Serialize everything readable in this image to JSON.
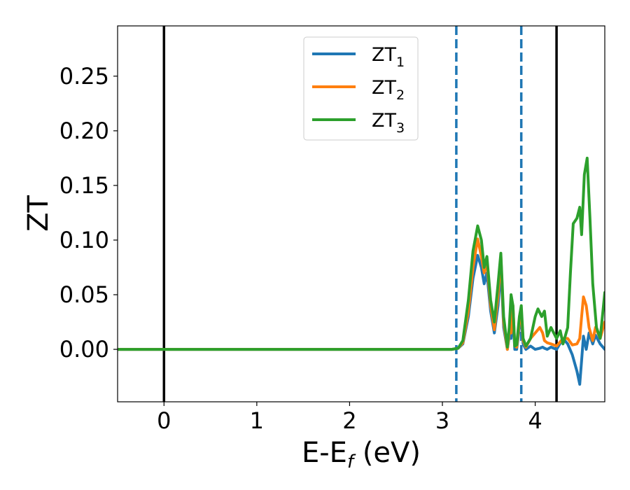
{
  "chart_data": {
    "type": "line",
    "xlabel": "E-E",
    "xlabel_sub": "f",
    "xlabel_unit": " (eV)",
    "ylabel": "ZT",
    "xlim": [
      -0.5,
      4.75
    ],
    "ylim": [
      -0.048,
      0.296
    ],
    "xticks": [
      0,
      1,
      2,
      3,
      4
    ],
    "xtick_labels": [
      "0",
      "1",
      "2",
      "3",
      "4"
    ],
    "yticks": [
      0.0,
      0.05,
      0.1,
      0.15,
      0.2,
      0.25
    ],
    "ytick_labels": [
      "0.00",
      "0.05",
      "0.10",
      "0.15",
      "0.20",
      "0.25"
    ],
    "grid": false,
    "legend_position": "upper-center",
    "vlines": [
      {
        "x": 0.0,
        "style": "solid",
        "color": "#000000"
      },
      {
        "x": 4.23,
        "style": "solid",
        "color": "#000000"
      },
      {
        "x": 3.15,
        "style": "dashed",
        "color": "#1f77b4"
      },
      {
        "x": 3.85,
        "style": "dashed",
        "color": "#1f77b4"
      }
    ],
    "series": [
      {
        "name": "ZT",
        "sub": "1",
        "color": "#1f77b4",
        "x": [
          -0.5,
          3.1,
          3.17,
          3.22,
          3.28,
          3.33,
          3.38,
          3.42,
          3.45,
          3.48,
          3.52,
          3.56,
          3.6,
          3.63,
          3.66,
          3.7,
          3.72,
          3.74,
          3.76,
          3.78,
          3.8,
          3.83,
          3.85,
          3.87,
          3.9,
          3.95,
          4.0,
          4.05,
          4.08,
          4.1,
          4.13,
          4.17,
          4.23,
          4.3,
          4.35,
          4.4,
          4.45,
          4.48,
          4.5,
          4.52,
          4.55,
          4.58,
          4.62,
          4.65,
          4.7,
          4.75
        ],
        "y": [
          0,
          0,
          0.001,
          0.005,
          0.03,
          0.065,
          0.086,
          0.075,
          0.06,
          0.07,
          0.035,
          0.015,
          0.04,
          0.075,
          0.02,
          0.0,
          0.012,
          0.01,
          0.03,
          0.0,
          0.0,
          0.02,
          0.03,
          0.005,
          0.0,
          0.003,
          0.0,
          0.001,
          0.002,
          0.001,
          0.0,
          0.002,
          0.0,
          0.01,
          0.005,
          -0.005,
          -0.02,
          -0.032,
          -0.01,
          0.012,
          0.0,
          0.015,
          0.005,
          0.013,
          0.005,
          0.0
        ]
      },
      {
        "name": "ZT",
        "sub": "2",
        "color": "#ff7f0e",
        "x": [
          -0.5,
          3.1,
          3.17,
          3.22,
          3.28,
          3.33,
          3.38,
          3.42,
          3.45,
          3.48,
          3.52,
          3.56,
          3.6,
          3.63,
          3.66,
          3.7,
          3.72,
          3.74,
          3.76,
          3.78,
          3.8,
          3.83,
          3.85,
          3.87,
          3.9,
          3.95,
          4.0,
          4.05,
          4.08,
          4.1,
          4.13,
          4.17,
          4.23,
          4.3,
          4.35,
          4.4,
          4.45,
          4.48,
          4.5,
          4.52,
          4.55,
          4.58,
          4.62,
          4.65,
          4.7,
          4.75
        ],
        "y": [
          0,
          0,
          0.001,
          0.006,
          0.035,
          0.075,
          0.101,
          0.085,
          0.07,
          0.08,
          0.04,
          0.018,
          0.05,
          0.085,
          0.025,
          0.0,
          0.015,
          0.015,
          0.04,
          0.003,
          0.002,
          0.025,
          0.035,
          0.008,
          0.002,
          0.01,
          0.015,
          0.02,
          0.015,
          0.008,
          0.006,
          0.005,
          0.003,
          0.01,
          0.01,
          0.004,
          0.005,
          0.01,
          0.03,
          0.048,
          0.04,
          0.02,
          0.008,
          0.02,
          0.01,
          0.025
        ]
      },
      {
        "name": "ZT",
        "sub": "3",
        "color": "#2ca02c",
        "x": [
          -0.5,
          3.1,
          3.17,
          3.22,
          3.28,
          3.33,
          3.38,
          3.42,
          3.45,
          3.48,
          3.52,
          3.56,
          3.6,
          3.63,
          3.66,
          3.7,
          3.72,
          3.74,
          3.76,
          3.78,
          3.8,
          3.83,
          3.85,
          3.87,
          3.9,
          3.95,
          4.0,
          4.03,
          4.07,
          4.1,
          4.13,
          4.17,
          4.23,
          4.27,
          4.3,
          4.35,
          4.38,
          4.41,
          4.45,
          4.48,
          4.5,
          4.53,
          4.56,
          4.59,
          4.62,
          4.66,
          4.7,
          4.75
        ],
        "y": [
          0,
          0,
          0.001,
          0.008,
          0.045,
          0.09,
          0.113,
          0.1,
          0.075,
          0.085,
          0.045,
          0.025,
          0.06,
          0.088,
          0.03,
          0.002,
          0.02,
          0.05,
          0.04,
          0.003,
          0.004,
          0.03,
          0.04,
          0.01,
          0.003,
          0.01,
          0.03,
          0.037,
          0.03,
          0.035,
          0.012,
          0.02,
          0.01,
          0.017,
          0.005,
          0.02,
          0.07,
          0.115,
          0.12,
          0.13,
          0.105,
          0.16,
          0.175,
          0.12,
          0.06,
          0.02,
          0.01,
          0.052
        ]
      }
    ]
  }
}
